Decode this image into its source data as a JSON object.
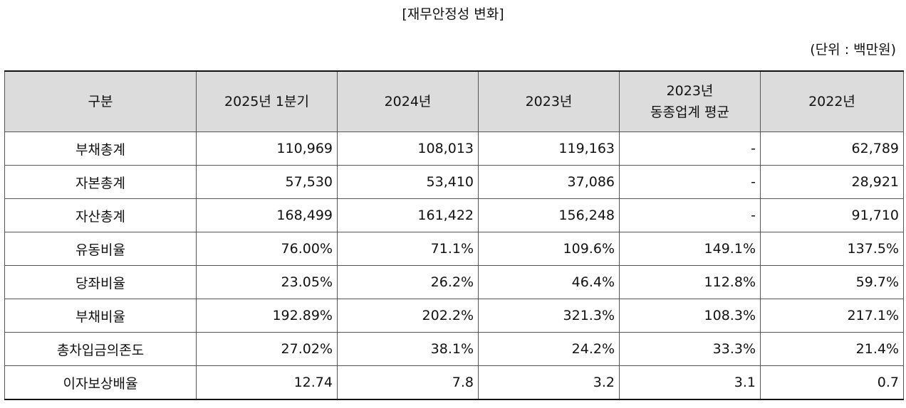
{
  "title": "[재무안정성 변화]",
  "unit": "(단위 : 백만원)",
  "table": {
    "headers": [
      "구분",
      "2025년 1분기",
      "2024년",
      "2023년",
      [
        "2023년",
        "동종업계 평균"
      ],
      "2022년"
    ],
    "rows": [
      [
        "부채총계",
        "110,969",
        "108,013",
        "119,163",
        "-",
        "62,789"
      ],
      [
        "자본총계",
        "57,530",
        "53,410",
        "37,086",
        "-",
        "28,921"
      ],
      [
        "자산총계",
        "168,499",
        "161,422",
        "156,248",
        "-",
        "91,710"
      ],
      [
        "유동비율",
        "76.00%",
        "71.1%",
        "109.6%",
        "149.1%",
        "137.5%"
      ],
      [
        "당좌비율",
        "23.05%",
        "26.2%",
        "46.4%",
        "112.8%",
        "59.7%"
      ],
      [
        "부채비율",
        "192.89%",
        "202.2%",
        "321.3%",
        "108.3%",
        "217.1%"
      ],
      [
        "총차입금의존도",
        "27.02%",
        "38.1%",
        "24.2%",
        "33.3%",
        "21.4%"
      ],
      [
        "이자보상배율",
        "12.74",
        "7.8",
        "3.2",
        "3.1",
        "0.7"
      ]
    ]
  }
}
